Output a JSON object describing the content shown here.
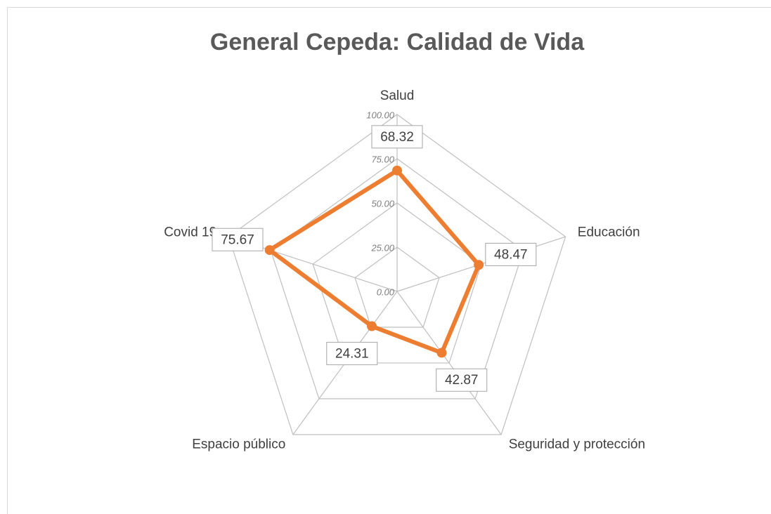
{
  "chart_data": {
    "type": "radar",
    "title": "General Cepeda: Calidad de Vida",
    "categories": [
      "Salud",
      "Educación",
      "Seguridad y protección",
      "Espacio público",
      "Covid 19"
    ],
    "values": [
      68.32,
      48.47,
      42.87,
      24.31,
      75.67
    ],
    "color": "#ed7d31",
    "ylim": [
      0,
      100
    ],
    "yticks": [
      {
        "value": 0,
        "label": "0.00"
      },
      {
        "value": 25,
        "label": "25.00"
      },
      {
        "value": 50,
        "label": "50.00"
      },
      {
        "value": 75,
        "label": "75.00"
      },
      {
        "value": 100,
        "label": "100.00"
      }
    ],
    "grid": true
  }
}
